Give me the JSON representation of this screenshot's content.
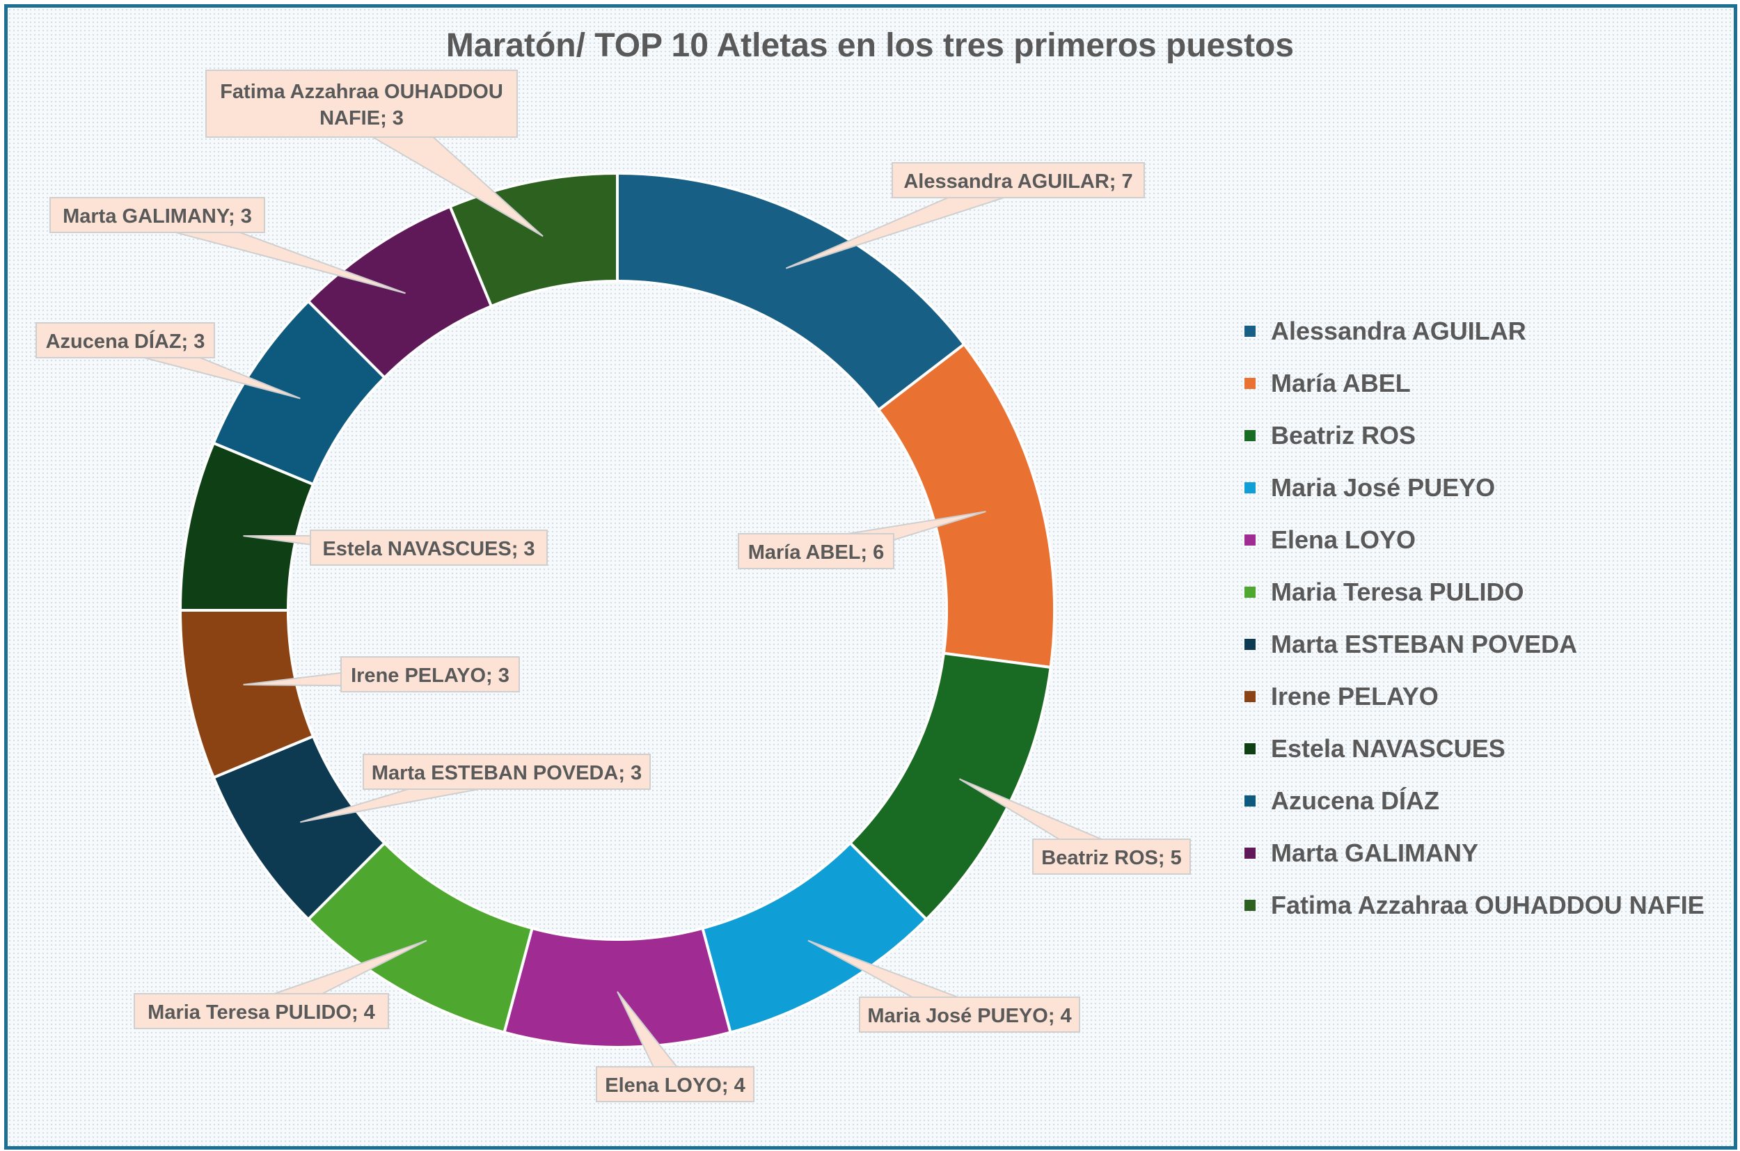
{
  "chart_data": {
    "type": "pie",
    "donut": true,
    "title": "Maratón/ TOP 10 Atletas en los tres primeros puestos",
    "legend_position": "right",
    "slices": [
      {
        "label": "Alessandra AGUILAR",
        "value": 7,
        "color": "#185f85",
        "data_label": "Alessandra AGUILAR; 7"
      },
      {
        "label": "María ABEL",
        "value": 6,
        "color": "#e97132",
        "data_label": "María ABEL; 6"
      },
      {
        "label": "Beatriz ROS",
        "value": 5,
        "color": "#196b24",
        "data_label": "Beatriz ROS; 5"
      },
      {
        "label": "Maria José PUEYO",
        "value": 4,
        "color": "#0f9ed5",
        "data_label": "Maria José PUEYO; 4"
      },
      {
        "label": "Elena LOYO",
        "value": 4,
        "color": "#a02b93",
        "data_label": "Elena LOYO; 4"
      },
      {
        "label": "Maria Teresa PULIDO",
        "value": 4,
        "color": "#4ea72e",
        "data_label": "Maria Teresa PULIDO; 4"
      },
      {
        "label": "Marta ESTEBAN POVEDA",
        "value": 3,
        "color": "#0e3a51",
        "data_label": "Marta ESTEBAN POVEDA; 3"
      },
      {
        "label": "Irene PELAYO",
        "value": 3,
        "color": "#8c4314",
        "data_label": "Irene PELAYO; 3"
      },
      {
        "label": "Estela NAVASCUES",
        "value": 3,
        "color": "#0f3f15",
        "data_label": "Estela NAVASCUES; 3"
      },
      {
        "label": "Azucena DÍAZ",
        "value": 3,
        "color": "#0e5a7f",
        "data_label": "Azucena DÍAZ; 3"
      },
      {
        "label": "Marta GALIMANY",
        "value": 3,
        "color": "#5f1858",
        "data_label": "Marta GALIMANY; 3"
      },
      {
        "label": "Fatima Azzahraa OUHADDOU NAFIE",
        "value": 3,
        "color": "#2d6120",
        "data_label": [
          "Fatima Azzahraa OUHADDOU",
          "NAFIE; 3"
        ]
      }
    ]
  }
}
